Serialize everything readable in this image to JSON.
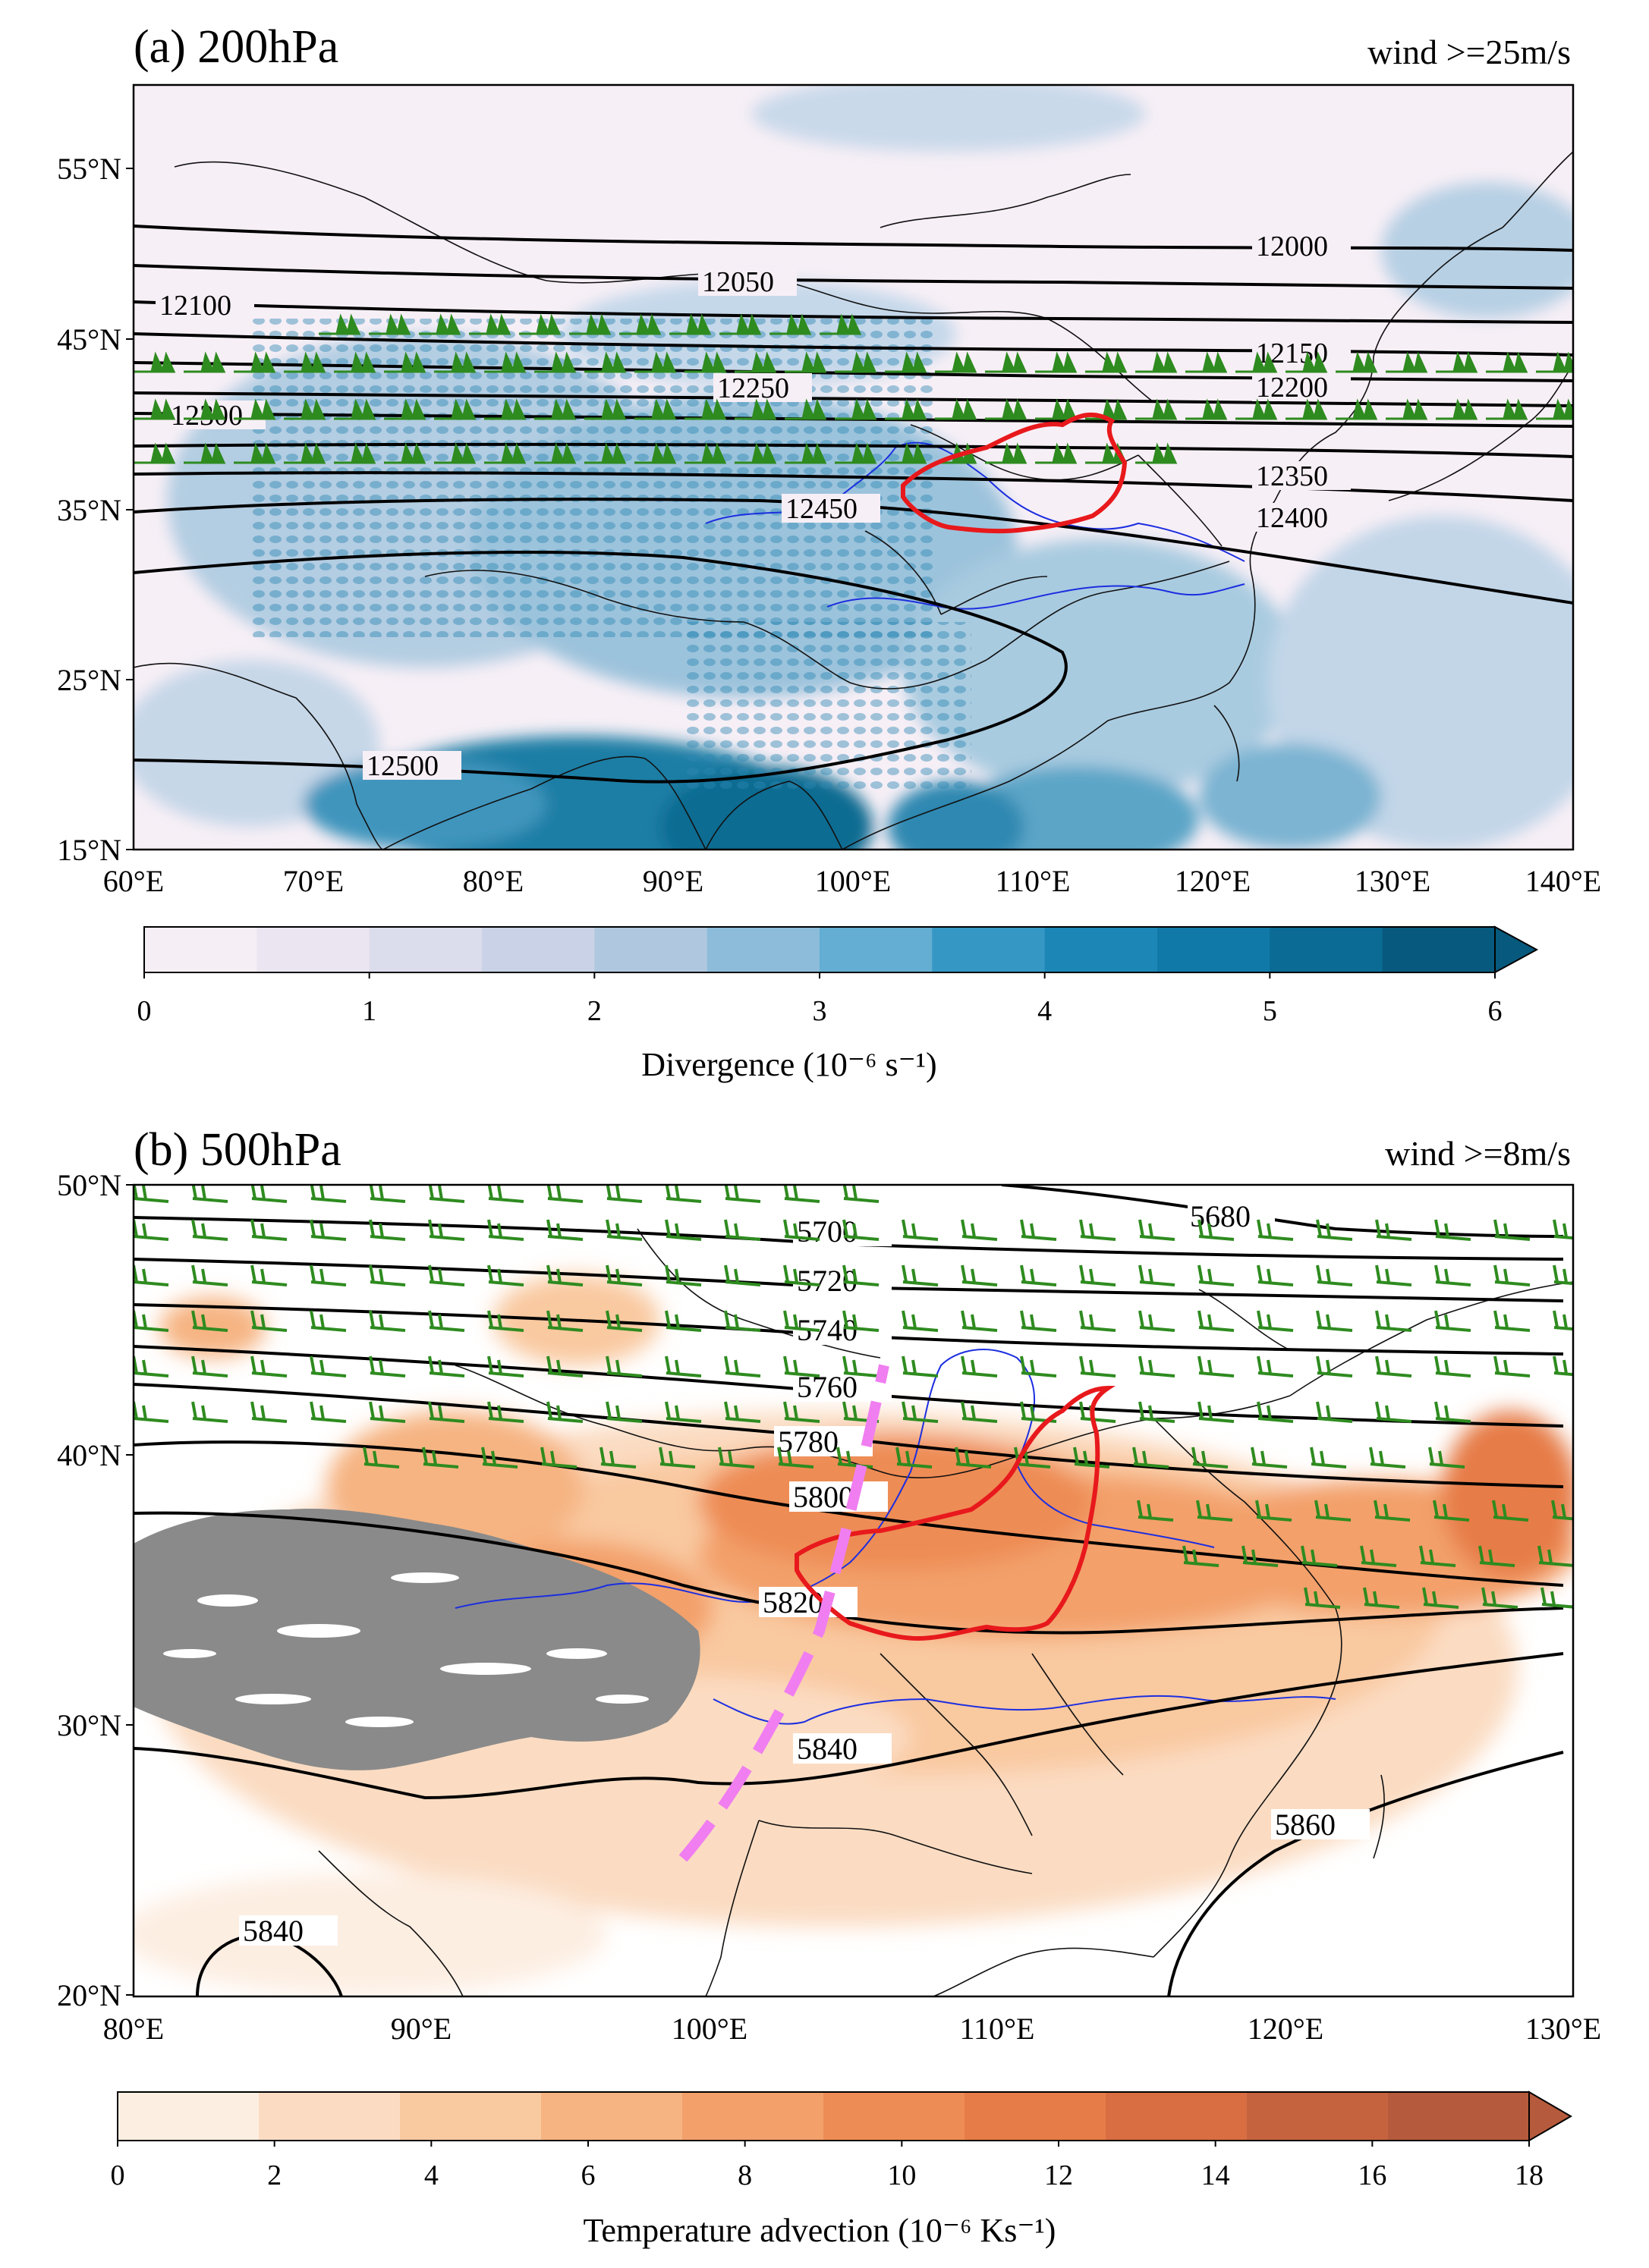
{
  "panel_a": {
    "title": "(a) 200hPa",
    "wind_note": "wind >=25m/s",
    "lat_ticks": [
      "55°N",
      "45°N",
      "35°N",
      "25°N",
      "15°N"
    ],
    "lon_ticks": [
      "60°E",
      "70°E",
      "80°E",
      "90°E",
      "100°E",
      "110°E",
      "120°E",
      "130°E",
      "140°E"
    ],
    "contour_labels": [
      "12000",
      "12050",
      "12100",
      "12150",
      "12200",
      "12250",
      "12300",
      "12350",
      "12400",
      "12450",
      "12500"
    ],
    "colorbar": {
      "label": "Divergence (10⁻⁶ s⁻¹)",
      "ticks": [
        "0",
        "1",
        "2",
        "3",
        "4",
        "5",
        "6"
      ],
      "colors": [
        "#f6eef5",
        "#ebe5f1",
        "#dbdcec",
        "#c9d2e6",
        "#b0c8df",
        "#8cbcd9",
        "#63aed2",
        "#3597c4",
        "#1c86b6",
        "#1079a8",
        "#0b6b95",
        "#075a7d"
      ]
    }
  },
  "panel_b": {
    "title": "(b) 500hPa",
    "wind_note": "wind >=8m/s",
    "lat_ticks": [
      "50°N",
      "40°N",
      "30°N",
      "20°N"
    ],
    "lon_ticks": [
      "80°E",
      "90°E",
      "100°E",
      "110°E",
      "120°E",
      "130°E"
    ],
    "contour_labels": [
      "5680",
      "5700",
      "5720",
      "5740",
      "5760",
      "5780",
      "5800",
      "5820",
      "5840",
      "5860",
      "5840"
    ],
    "colorbar": {
      "label": "Temperature advection (10⁻⁶ Ks⁻¹)",
      "ticks": [
        "0",
        "2",
        "4",
        "6",
        "8",
        "10",
        "12",
        "14",
        "16",
        "18"
      ],
      "colors": [
        "#fdeee2",
        "#fbdcc2",
        "#f9c9a0",
        "#f6b482",
        "#f3a06a",
        "#ee8c55",
        "#e67c47",
        "#d86e42",
        "#c6633f",
        "#b55a3c"
      ]
    }
  },
  "colors": {
    "height_contour": "#000000",
    "wind_barb": "#2e8b1f",
    "study_region_outline": "#e8191c",
    "rivers": "#1c2ee0",
    "trough_line": "#f07ef0",
    "terrain_mask": "#8a8a8a"
  }
}
